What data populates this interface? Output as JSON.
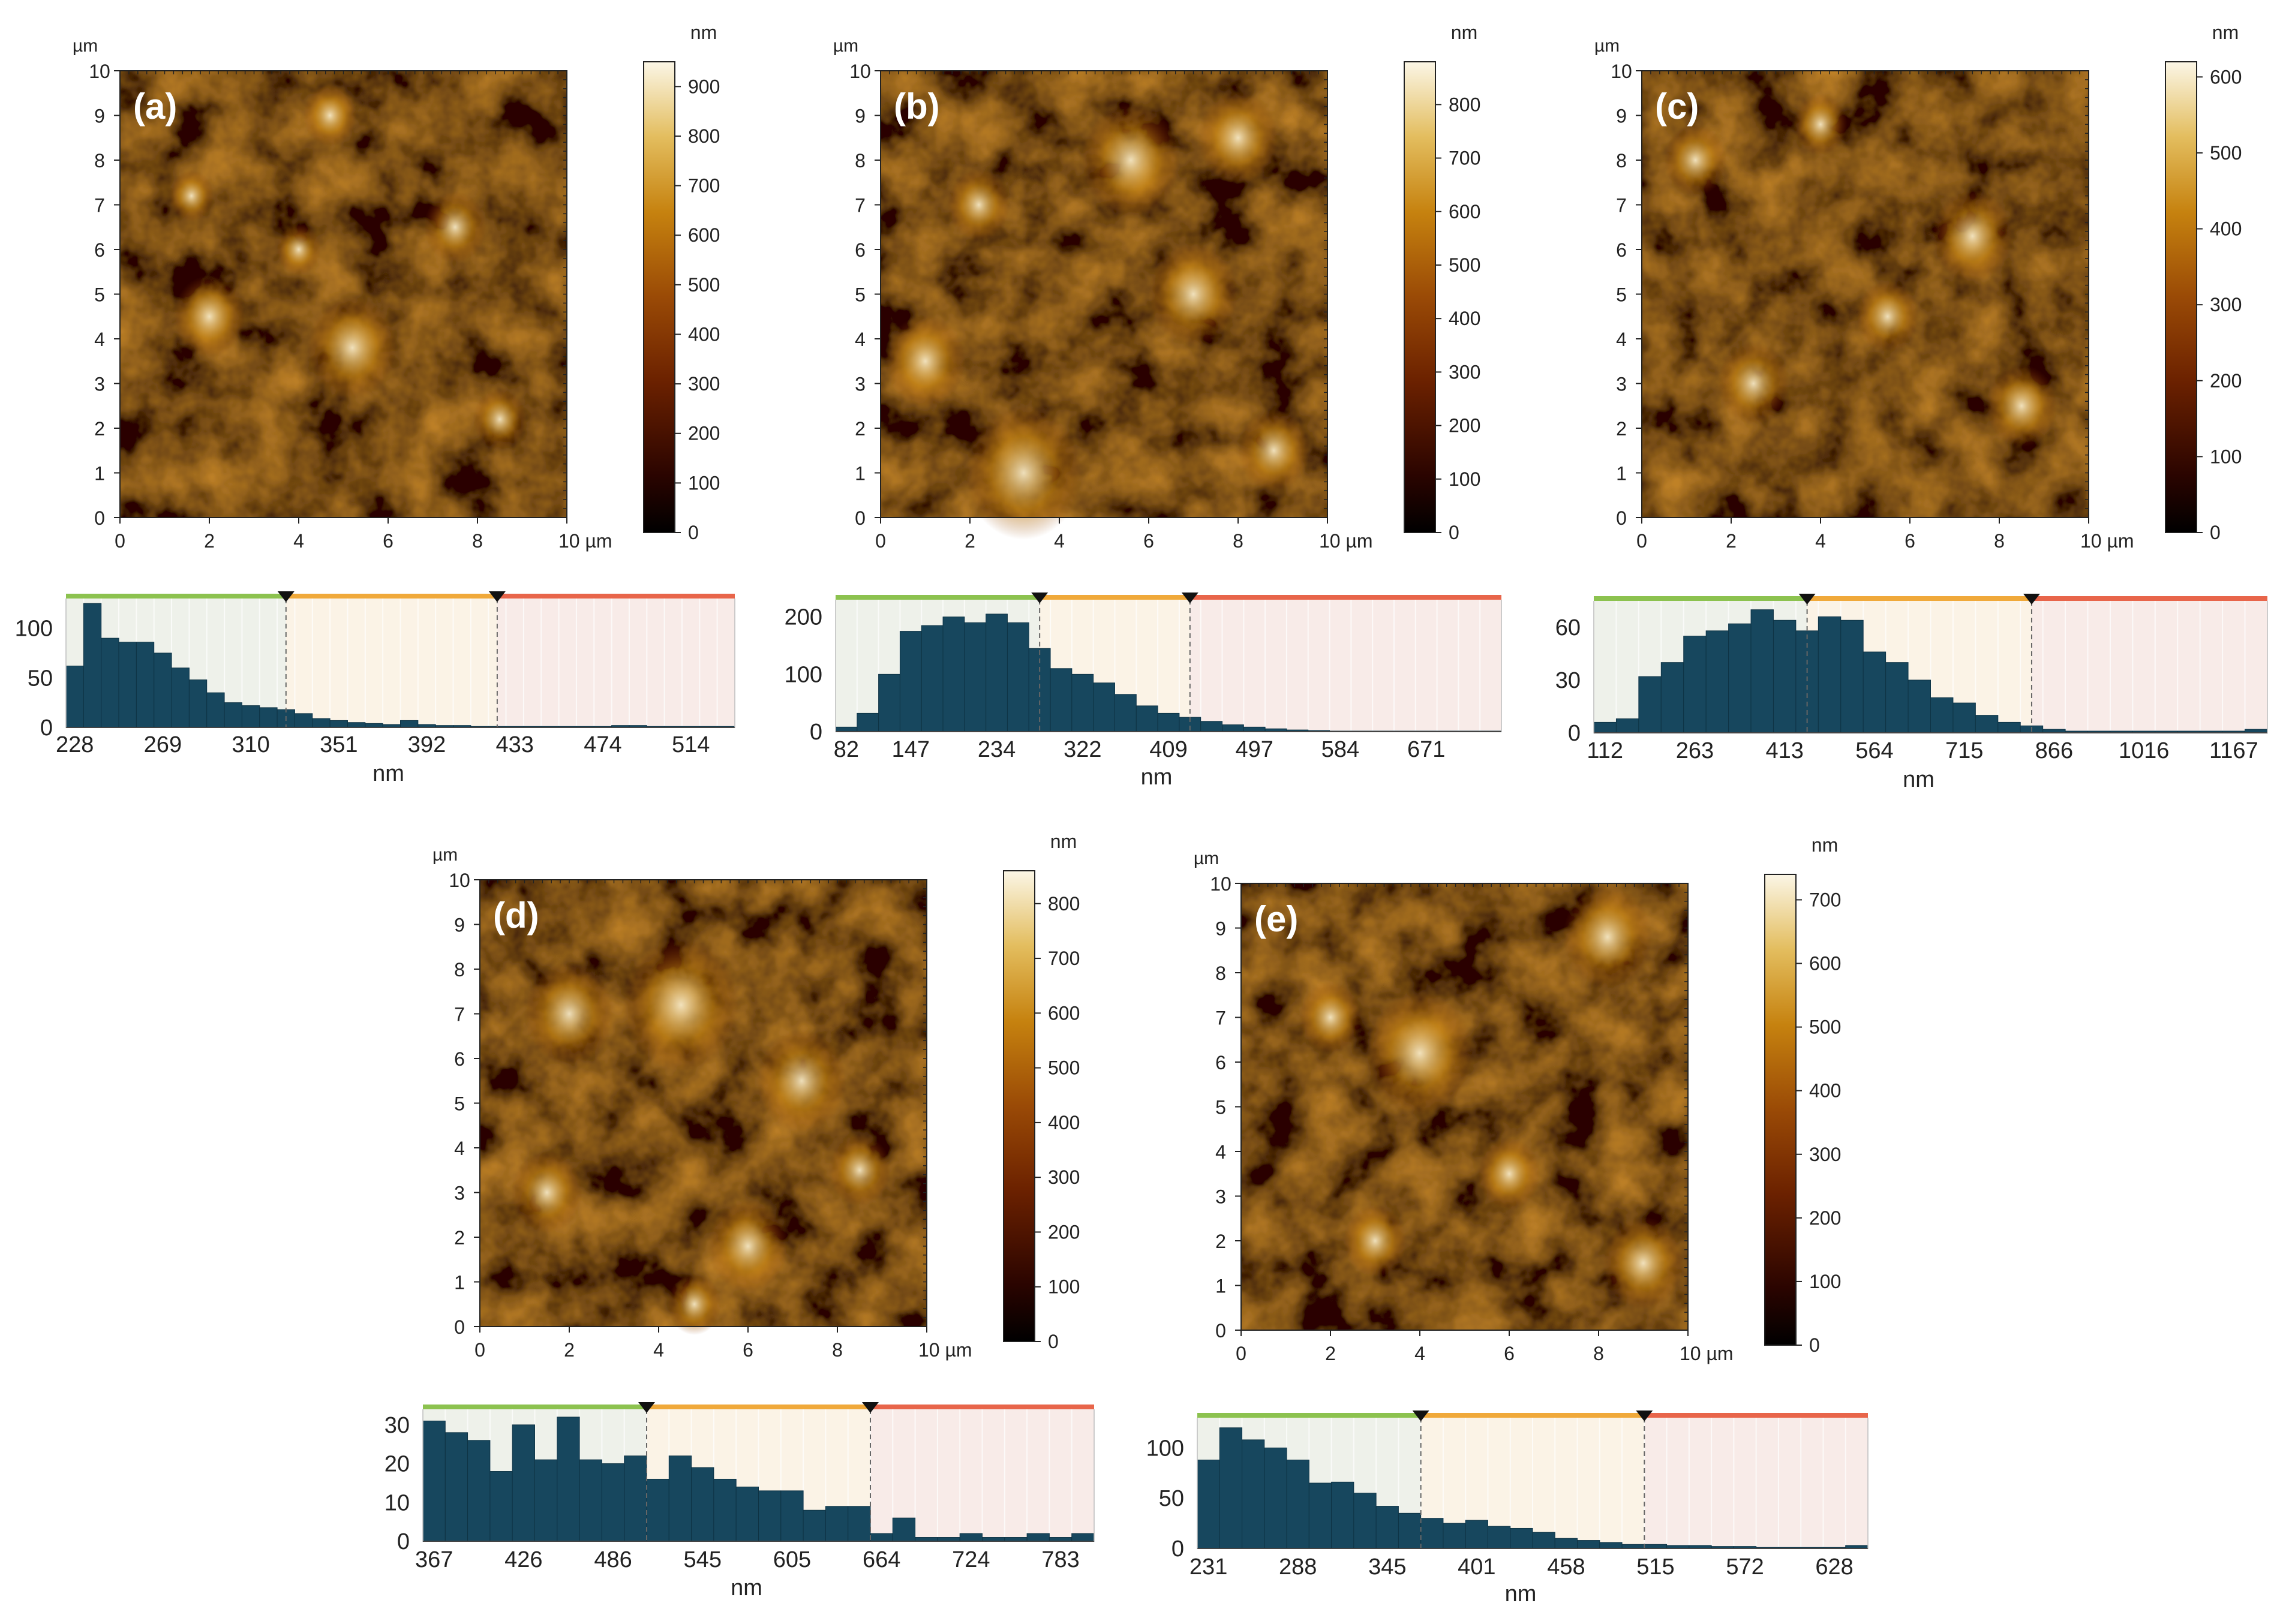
{
  "afm_units": {
    "axis_unit": "µm",
    "scale_unit": "nm",
    "hist_xlabel": "nm",
    "x_end_label": "10 µm"
  },
  "panels": [
    {
      "label": "(a)",
      "map_ticks": [
        "0",
        "1",
        "2",
        "3",
        "4",
        "5",
        "6",
        "7",
        "8",
        "9",
        "10"
      ],
      "x_ticks": [
        "0",
        "2",
        "4",
        "6",
        "8"
      ],
      "colorbar_ticks": [
        "0",
        "100",
        "200",
        "300",
        "400",
        "500",
        "600",
        "700",
        "800",
        "900"
      ],
      "colorbar_max": 950
    },
    {
      "label": "(b)",
      "map_ticks": [
        "0",
        "1",
        "2",
        "3",
        "4",
        "5",
        "6",
        "7",
        "8",
        "9",
        "10"
      ],
      "x_ticks": [
        "0",
        "2",
        "4",
        "6",
        "8"
      ],
      "colorbar_ticks": [
        "0",
        "100",
        "200",
        "300",
        "400",
        "500",
        "600",
        "700",
        "800"
      ],
      "colorbar_max": 880
    },
    {
      "label": "(c)",
      "map_ticks": [
        "0",
        "1",
        "2",
        "3",
        "4",
        "5",
        "6",
        "7",
        "8",
        "9",
        "10"
      ],
      "x_ticks": [
        "0",
        "2",
        "4",
        "6",
        "8"
      ],
      "colorbar_ticks": [
        "0",
        "100",
        "200",
        "300",
        "400",
        "500",
        "600"
      ],
      "colorbar_max": 620
    },
    {
      "label": "(d)",
      "map_ticks": [
        "0",
        "1",
        "2",
        "3",
        "4",
        "5",
        "6",
        "7",
        "8",
        "9",
        "10"
      ],
      "x_ticks": [
        "0",
        "2",
        "4",
        "6",
        "8"
      ],
      "colorbar_ticks": [
        "0",
        "100",
        "200",
        "300",
        "400",
        "500",
        "600",
        "700",
        "800"
      ],
      "colorbar_max": 860
    },
    {
      "label": "(e)",
      "map_ticks": [
        "0",
        "1",
        "2",
        "3",
        "4",
        "5",
        "6",
        "7",
        "8",
        "9",
        "10"
      ],
      "x_ticks": [
        "0",
        "2",
        "4",
        "6",
        "8"
      ],
      "colorbar_ticks": [
        "0",
        "100",
        "200",
        "300",
        "400",
        "500",
        "600",
        "700"
      ],
      "colorbar_max": 740
    }
  ],
  "chart_data": [
    {
      "panel": "(a)",
      "type": "bar",
      "x_tick_labels": [
        "228",
        "269",
        "310",
        "351",
        "392",
        "433",
        "474",
        "514"
      ],
      "y_ticks": [
        0,
        50,
        100
      ],
      "ylim": [
        0,
        130
      ],
      "xlabel": "nm",
      "x_tick_positions": [
        0,
        5,
        10,
        15,
        20,
        25,
        30,
        35
      ],
      "markers": [
        12.5,
        24.5
      ],
      "bins": 38,
      "values": [
        62,
        125,
        90,
        86,
        86,
        75,
        60,
        48,
        35,
        25,
        22,
        20,
        18,
        14,
        9,
        7,
        5,
        4,
        3,
        7,
        3,
        2,
        2,
        1,
        1,
        1,
        1,
        1,
        1,
        1,
        1,
        2,
        2,
        1,
        1,
        1,
        1,
        1
      ]
    },
    {
      "panel": "(b)",
      "type": "bar",
      "x_tick_labels": [
        "82",
        "147",
        "234",
        "322",
        "409",
        "497",
        "584",
        "671"
      ],
      "y_ticks": [
        0,
        100,
        200
      ],
      "ylim": [
        0,
        230
      ],
      "xlabel": "nm",
      "x_tick_positions": [
        0,
        3,
        7,
        11,
        15,
        19,
        23,
        27
      ],
      "markers": [
        9.5,
        16.5
      ],
      "bins": 31,
      "values": [
        8,
        32,
        100,
        175,
        185,
        200,
        190,
        205,
        190,
        145,
        110,
        100,
        85,
        65,
        45,
        32,
        25,
        18,
        12,
        8,
        5,
        3,
        2,
        1,
        1,
        1,
        1,
        1,
        1,
        1,
        1
      ]
    },
    {
      "panel": "(c)",
      "type": "bar",
      "x_tick_labels": [
        "112",
        "263",
        "413",
        "564",
        "715",
        "866",
        "1016",
        "1167"
      ],
      "y_ticks": [
        0,
        30,
        60
      ],
      "ylim": [
        0,
        75
      ],
      "xlabel": "nm",
      "x_tick_positions": [
        0,
        4,
        8,
        12,
        16,
        20,
        24,
        28
      ],
      "markers": [
        9.5,
        19.5
      ],
      "bins": 30,
      "values": [
        6,
        8,
        32,
        40,
        55,
        58,
        62,
        70,
        64,
        58,
        66,
        64,
        46,
        40,
        30,
        20,
        17,
        10,
        6,
        4,
        2,
        1,
        1,
        1,
        1,
        1,
        1,
        1,
        1,
        2
      ]
    },
    {
      "panel": "(d)",
      "type": "bar",
      "x_tick_labels": [
        "367",
        "426",
        "486",
        "545",
        "605",
        "664",
        "724",
        "783"
      ],
      "y_ticks": [
        0,
        10,
        20,
        30
      ],
      "ylim": [
        0,
        34
      ],
      "xlabel": "nm",
      "x_tick_positions": [
        0,
        4,
        8,
        12,
        16,
        20,
        24,
        28
      ],
      "markers": [
        10,
        20
      ],
      "bins": 30,
      "values": [
        31,
        28,
        26,
        18,
        30,
        21,
        32,
        21,
        20,
        22,
        16,
        22,
        19,
        16,
        14,
        13,
        13,
        8,
        9,
        9,
        2,
        6,
        1,
        1,
        2,
        1,
        1,
        2,
        1,
        2
      ]
    },
    {
      "panel": "(e)",
      "type": "bar",
      "x_tick_labels": [
        "231",
        "288",
        "345",
        "401",
        "458",
        "515",
        "572",
        "628"
      ],
      "y_ticks": [
        0,
        50,
        100
      ],
      "ylim": [
        0,
        130
      ],
      "xlabel": "nm",
      "x_tick_positions": [
        0,
        4,
        8,
        12,
        16,
        20,
        24,
        28
      ],
      "markers": [
        10,
        20
      ],
      "bins": 30,
      "values": [
        88,
        120,
        108,
        100,
        88,
        65,
        66,
        55,
        42,
        35,
        30,
        25,
        28,
        22,
        20,
        16,
        10,
        8,
        6,
        4,
        4,
        3,
        3,
        2,
        2,
        1,
        1,
        1,
        1,
        3
      ]
    }
  ],
  "colors": {
    "bar_fill": "#17475e",
    "bar_edge": "#0e3344",
    "zone_green": "#8cc24f",
    "zone_orange": "#f0a93a",
    "zone_red": "#e8654a",
    "bg_green": "#eef1ea",
    "bg_orange": "#fbf3e6",
    "bg_red": "#f8ebe8",
    "afm_dark": "#2a0400",
    "afm_mid": "#8b3a00",
    "afm_light": "#f6e8c4"
  }
}
